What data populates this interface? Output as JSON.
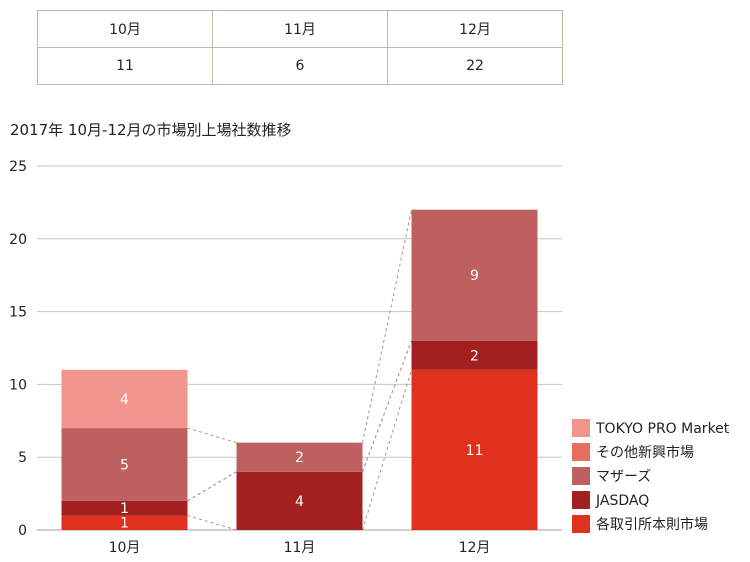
{
  "table": {
    "headers": [
      "10月",
      "11月",
      "12月"
    ],
    "values": [
      "11",
      "6",
      "22"
    ]
  },
  "chart_data": {
    "type": "bar",
    "stacked": true,
    "title": "2017年 10月-12月の市場別上場社数推移",
    "categories": [
      "10月",
      "11月",
      "12月"
    ],
    "ylim": [
      0,
      25
    ],
    "yticks": [
      0,
      5,
      10,
      15,
      20,
      25
    ],
    "grid": true,
    "legend_position": "right",
    "series": [
      {
        "name": "各取引所本則市場",
        "values": [
          1,
          0,
          11
        ],
        "color": "#e0301e"
      },
      {
        "name": "JASDAQ",
        "values": [
          1,
          4,
          2
        ],
        "color": "#a32020"
      },
      {
        "name": "マザーズ",
        "values": [
          5,
          2,
          9
        ],
        "color": "#bf6060"
      },
      {
        "name": "その他新興市場",
        "values": [
          0,
          0,
          0
        ],
        "color": "#e76f5f"
      },
      {
        "name": "TOKYO PRO Market",
        "values": [
          4,
          0,
          0
        ],
        "color": "#f0968c"
      }
    ]
  }
}
